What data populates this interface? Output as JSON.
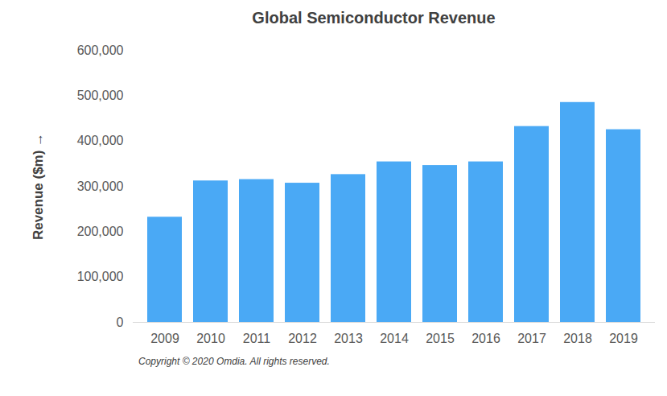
{
  "chart_data": {
    "type": "bar",
    "title": "Global Semiconductor Revenue",
    "y_label": "Revenue ($m)",
    "caption": "Copyright © 2020 Omdia. All rights reserved.",
    "categories": [
      "2009",
      "2010",
      "2011",
      "2012",
      "2013",
      "2014",
      "2015",
      "2016",
      "2017",
      "2018",
      "2019"
    ],
    "values": [
      232000,
      312000,
      315000,
      307000,
      326000,
      354000,
      346000,
      354000,
      432000,
      485000,
      425000
    ],
    "color": "#4aa9f5",
    "ylim": [
      0,
      600000
    ],
    "yticks": [
      0,
      {
        "value": 100000,
        "label": "100,000"
      },
      {
        "value": 200000,
        "label": "200,000"
      },
      {
        "value": 300000,
        "label": "300,000"
      },
      {
        "value": 400000,
        "label": "400,000"
      },
      {
        "value": 500000,
        "label": "500,000"
      },
      {
        "value": 600000,
        "label": "600,000"
      }
    ],
    "grid": false
  }
}
